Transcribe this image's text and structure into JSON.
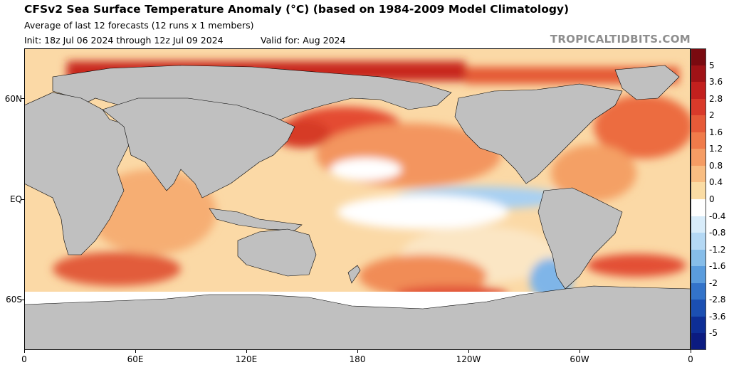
{
  "header": {
    "title": "CFSv2 Sea Surface Temperature Anomaly (°C) (based on 1984-2009 Model Climatology)",
    "subtitle": "Average of last 12 forecasts (12 runs x 1 members)",
    "init": "Init: 18z Jul 06 2024 through 12z Jul 09 2024",
    "valid": "Valid for: Aug 2024",
    "brand": "TROPICALTIDBITS.COM"
  },
  "map": {
    "x_ticks": [
      {
        "lon": 0,
        "label": "0"
      },
      {
        "lon": 60,
        "label": "60E"
      },
      {
        "lon": 120,
        "label": "120E"
      },
      {
        "lon": 180,
        "label": "180"
      },
      {
        "lon": 240,
        "label": "120W"
      },
      {
        "lon": 300,
        "label": "60W"
      },
      {
        "lon": 360,
        "label": "0"
      }
    ],
    "y_ticks": [
      {
        "lat": 60,
        "label": "60N"
      },
      {
        "lat": 0,
        "label": "EQ"
      },
      {
        "lat": -60,
        "label": "60S"
      }
    ],
    "lon_range": [
      0,
      360
    ],
    "lat_range": [
      -90,
      90
    ],
    "land_color": "#c0c0c0",
    "ice_color": "#ffffff"
  },
  "colorbar": {
    "labels": [
      "5",
      "3.6",
      "2.8",
      "2",
      "1.6",
      "1.2",
      "0.8",
      "0.4",
      "0",
      "-0.4",
      "-0.8",
      "-1.2",
      "-1.6",
      "-2",
      "-2.8",
      "-3.6",
      "-5"
    ],
    "colors": [
      "#7a0a10",
      "#a01216",
      "#c3201e",
      "#d93a2a",
      "#e65a38",
      "#f07b4a",
      "#f59c64",
      "#f8bd82",
      "#fadca4",
      "#ffffff",
      "#d8ecfa",
      "#b4d8f4",
      "#86bde9",
      "#5a9cdd",
      "#3373c9",
      "#1b4fb2",
      "#0d2e96",
      "#0b1b80"
    ]
  }
}
